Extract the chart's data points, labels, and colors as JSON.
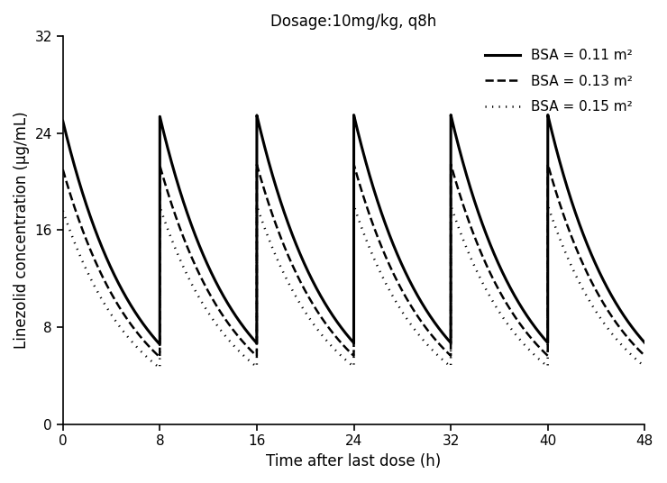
{
  "title": "Dosage:10mg/kg, q8h",
  "xlabel": "Time after last dose (h)",
  "ylabel": "Linezolid concentration (µg/mL)",
  "xlim": [
    0,
    48
  ],
  "ylim": [
    0,
    32
  ],
  "yticks": [
    0,
    8,
    16,
    24,
    32
  ],
  "xticks": [
    0,
    8,
    16,
    24,
    32,
    40,
    48
  ],
  "legend_entries": [
    "BSA = 0.11 m²",
    "BSA = 0.13 m²",
    "BSA = 0.15 m²"
  ],
  "line_styles": [
    "solid",
    "dashed",
    "dotted"
  ],
  "line_colors": [
    "black",
    "black",
    "black"
  ],
  "configs": {
    "0.11": {
      "ke": 0.167,
      "dose_bolus": 18.8,
      "C_prior": 6.2
    },
    "0.13": {
      "ke": 0.167,
      "dose_bolus": 15.8,
      "C_prior": 5.2
    },
    "0.15": {
      "ke": 0.167,
      "dose_bolus": 13.3,
      "C_prior": 4.3
    }
  },
  "lw_map": {
    "0.11": 2.2,
    "0.13": 1.8,
    "0.15": 1.8
  },
  "doses_at": [
    0,
    8,
    16,
    24,
    32,
    40
  ],
  "figsize": [
    7.4,
    5.36
  ],
  "dpi": 100
}
